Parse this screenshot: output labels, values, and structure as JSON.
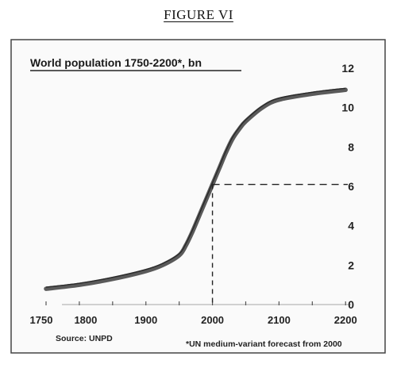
{
  "figure_label": "FIGURE VI",
  "chart_data": {
    "type": "line",
    "title": "World population 1750-2200*, bn",
    "xlabel": "",
    "ylabel": "",
    "xlim": [
      1750,
      2220
    ],
    "ylim": [
      0,
      12
    ],
    "x_ticks": [
      1750,
      1800,
      1900,
      2000,
      2100,
      2200
    ],
    "y_ticks": [
      0,
      2,
      4,
      6,
      8,
      10,
      12
    ],
    "grid": false,
    "series": [
      {
        "x": [
          1750,
          1800,
          1850,
          1900,
          1925,
          1950,
          1960,
          1970,
          1980,
          1990,
          2000,
          2010,
          2020,
          2030,
          2040,
          2050,
          2075,
          2100,
          2150,
          2200
        ],
        "y": [
          0.8,
          1.0,
          1.3,
          1.7,
          2.0,
          2.5,
          3.0,
          3.7,
          4.5,
          5.3,
          6.1,
          6.9,
          7.7,
          8.4,
          8.9,
          9.3,
          10.0,
          10.4,
          10.7,
          10.9
        ]
      }
    ],
    "reference": {
      "x": 2000,
      "y": 6.1
    },
    "source": "Source: UNPD",
    "footnote": "*UN medium-variant forecast from 2000"
  }
}
